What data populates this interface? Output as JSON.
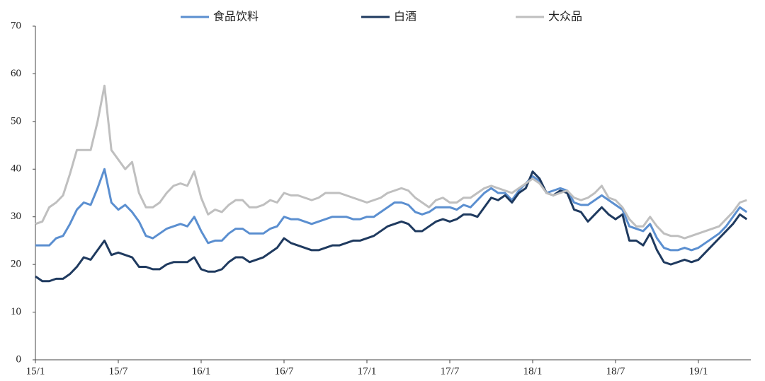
{
  "chart_data": {
    "type": "line",
    "categories": [
      "15/1",
      null,
      null,
      null,
      null,
      null,
      null,
      null,
      null,
      null,
      null,
      null,
      "15/7",
      null,
      null,
      null,
      null,
      null,
      null,
      null,
      null,
      null,
      null,
      null,
      "16/1",
      null,
      null,
      null,
      null,
      null,
      null,
      null,
      null,
      null,
      null,
      null,
      "16/7",
      null,
      null,
      null,
      null,
      null,
      null,
      null,
      null,
      null,
      null,
      null,
      "17/1",
      null,
      null,
      null,
      null,
      null,
      null,
      null,
      null,
      null,
      null,
      null,
      "17/7",
      null,
      null,
      null,
      null,
      null,
      null,
      null,
      null,
      null,
      null,
      null,
      "18/1",
      null,
      null,
      null,
      null,
      null,
      null,
      null,
      null,
      null,
      null,
      null,
      "18/7",
      null,
      null,
      null,
      null,
      null,
      null,
      null,
      null,
      null,
      null,
      null,
      "19/1",
      null,
      null,
      null,
      null,
      null,
      null,
      null
    ],
    "series": [
      {
        "name": "食品饮料",
        "color": "#5b8fd0",
        "values": [
          24,
          24,
          24,
          25.5,
          26,
          28.5,
          31.5,
          33,
          32.5,
          36,
          40,
          33,
          31.5,
          32.5,
          31,
          29,
          26,
          25.5,
          26.5,
          27.5,
          28,
          28.5,
          28,
          30,
          27,
          24.5,
          25,
          25,
          26.5,
          27.5,
          27.5,
          26.5,
          26.5,
          26.5,
          27.5,
          28,
          30,
          29.5,
          29.5,
          29,
          28.5,
          29,
          29.5,
          30,
          30,
          30,
          29.5,
          29.5,
          30,
          30,
          31,
          32,
          33,
          33,
          32.5,
          31,
          30.5,
          31,
          32,
          32,
          32,
          31.5,
          32.5,
          32,
          33.5,
          35,
          36,
          35,
          35,
          33.5,
          35.5,
          37,
          38.5,
          37.5,
          35,
          35.5,
          36,
          35.5,
          33,
          32.5,
          32.5,
          33.5,
          34.5,
          33.5,
          32.5,
          31.5,
          28,
          27.5,
          27,
          28.5,
          25.5,
          23.5,
          23,
          23,
          23.5,
          23,
          23.5,
          24.5,
          25.5,
          26.5,
          28,
          30,
          32,
          31
        ]
      },
      {
        "name": "白酒",
        "color": "#1f3a5f",
        "values": [
          17.5,
          16.5,
          16.5,
          17,
          17,
          18,
          19.5,
          21.5,
          21,
          23,
          25,
          22,
          22.5,
          22,
          21.5,
          19.5,
          19.5,
          19,
          19,
          20,
          20.5,
          20.5,
          20.5,
          21.5,
          19,
          18.5,
          18.5,
          19,
          20.5,
          21.5,
          21.5,
          20.5,
          21,
          21.5,
          22.5,
          23.5,
          25.5,
          24.5,
          24,
          23.5,
          23,
          23,
          23.5,
          24,
          24,
          24.5,
          25,
          25,
          25.5,
          26,
          27,
          28,
          28.5,
          29,
          28.5,
          27,
          27,
          28,
          29,
          29.5,
          29,
          29.5,
          30.5,
          30.5,
          30,
          32,
          34,
          33.5,
          34.5,
          33,
          35,
          36,
          39.5,
          38,
          35,
          34.5,
          35.5,
          35,
          31.5,
          31,
          29,
          30.5,
          32,
          30.5,
          29.5,
          30.5,
          25,
          25,
          24,
          26.5,
          23,
          20.5,
          20,
          20.5,
          21,
          20.5,
          21,
          22.5,
          24,
          25.5,
          27,
          28.5,
          30.5,
          29.5
        ]
      },
      {
        "name": "大众品",
        "color": "#bfbfbf",
        "values": [
          28.5,
          29,
          32,
          33,
          34.5,
          39,
          44,
          44,
          44,
          50,
          57.5,
          44,
          42,
          40,
          41.5,
          35,
          32,
          32,
          33,
          35,
          36.5,
          37,
          36.5,
          39.5,
          34,
          30.5,
          31.5,
          31,
          32.5,
          33.5,
          33.5,
          32,
          32,
          32.5,
          33.5,
          33,
          35,
          34.5,
          34.5,
          34,
          33.5,
          34,
          35,
          35,
          35,
          34.5,
          34,
          33.5,
          33,
          33.5,
          34,
          35,
          35.5,
          36,
          35.5,
          34,
          33,
          32,
          33.5,
          34,
          33,
          33,
          34,
          34,
          35,
          36,
          36.5,
          36,
          35.5,
          35,
          36,
          37,
          38,
          37,
          35,
          34.5,
          35,
          35.5,
          34,
          33.5,
          34,
          35,
          36.5,
          34,
          33.5,
          32,
          29.5,
          28,
          28,
          30,
          28,
          26.5,
          26,
          26,
          25.5,
          26,
          26.5,
          27,
          27.5,
          28,
          29.5,
          31,
          33,
          33.5
        ]
      }
    ],
    "ylim": [
      0,
      70
    ],
    "yticks": [
      0,
      10,
      20,
      30,
      40,
      50,
      60,
      70
    ],
    "grid": false,
    "legend": "top"
  }
}
